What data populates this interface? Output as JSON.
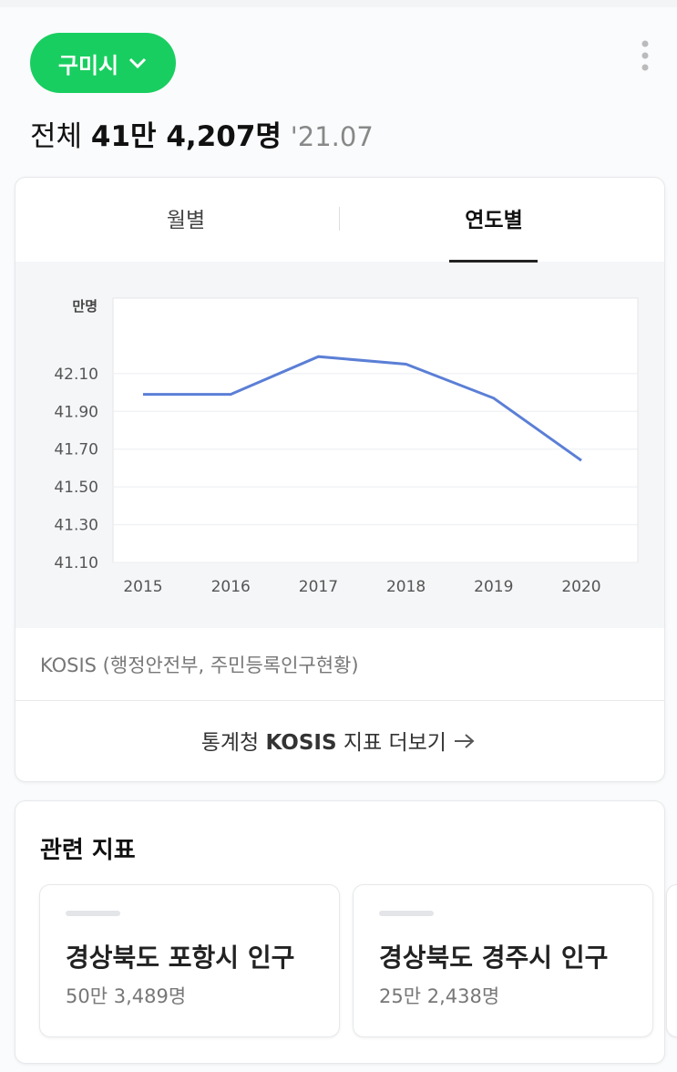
{
  "header": {
    "region_button": "구미시",
    "total_label": "전체",
    "total_value": "41만 4,207명",
    "date": "'21.07"
  },
  "tabs": [
    "월별",
    "연도별"
  ],
  "chart_data": {
    "type": "line",
    "y_unit": "만명",
    "categories": [
      "2015",
      "2016",
      "2017",
      "2018",
      "2019",
      "2020"
    ],
    "series": [
      {
        "color": "#5b7fd6",
        "values": [
          41.99,
          41.99,
          42.19,
          42.15,
          41.97,
          41.64
        ]
      }
    ],
    "ylim": [
      41.1,
      42.5
    ],
    "yticks": [
      {
        "value": 41.1,
        "label": "41.10"
      },
      {
        "value": 41.3,
        "label": "41.30"
      },
      {
        "value": 41.5,
        "label": "41.50"
      },
      {
        "value": 41.7,
        "label": "41.70"
      },
      {
        "value": 41.9,
        "label": "41.90"
      },
      {
        "value": 42.1,
        "label": "42.10"
      }
    ],
    "grid": true
  },
  "source": "KOSIS (행정안전부, 주민등록인구현황)",
  "more_link": {
    "prefix": "통계청",
    "brand": "KOSIS",
    "suffix": "지표 더보기"
  },
  "related": {
    "title": "관련 지표",
    "cards": [
      {
        "title": "경상북도 포항시 인구",
        "value": "50만 3,489명"
      },
      {
        "title": "경상북도 경주시 인구",
        "value": "25만 2,438명"
      }
    ]
  }
}
